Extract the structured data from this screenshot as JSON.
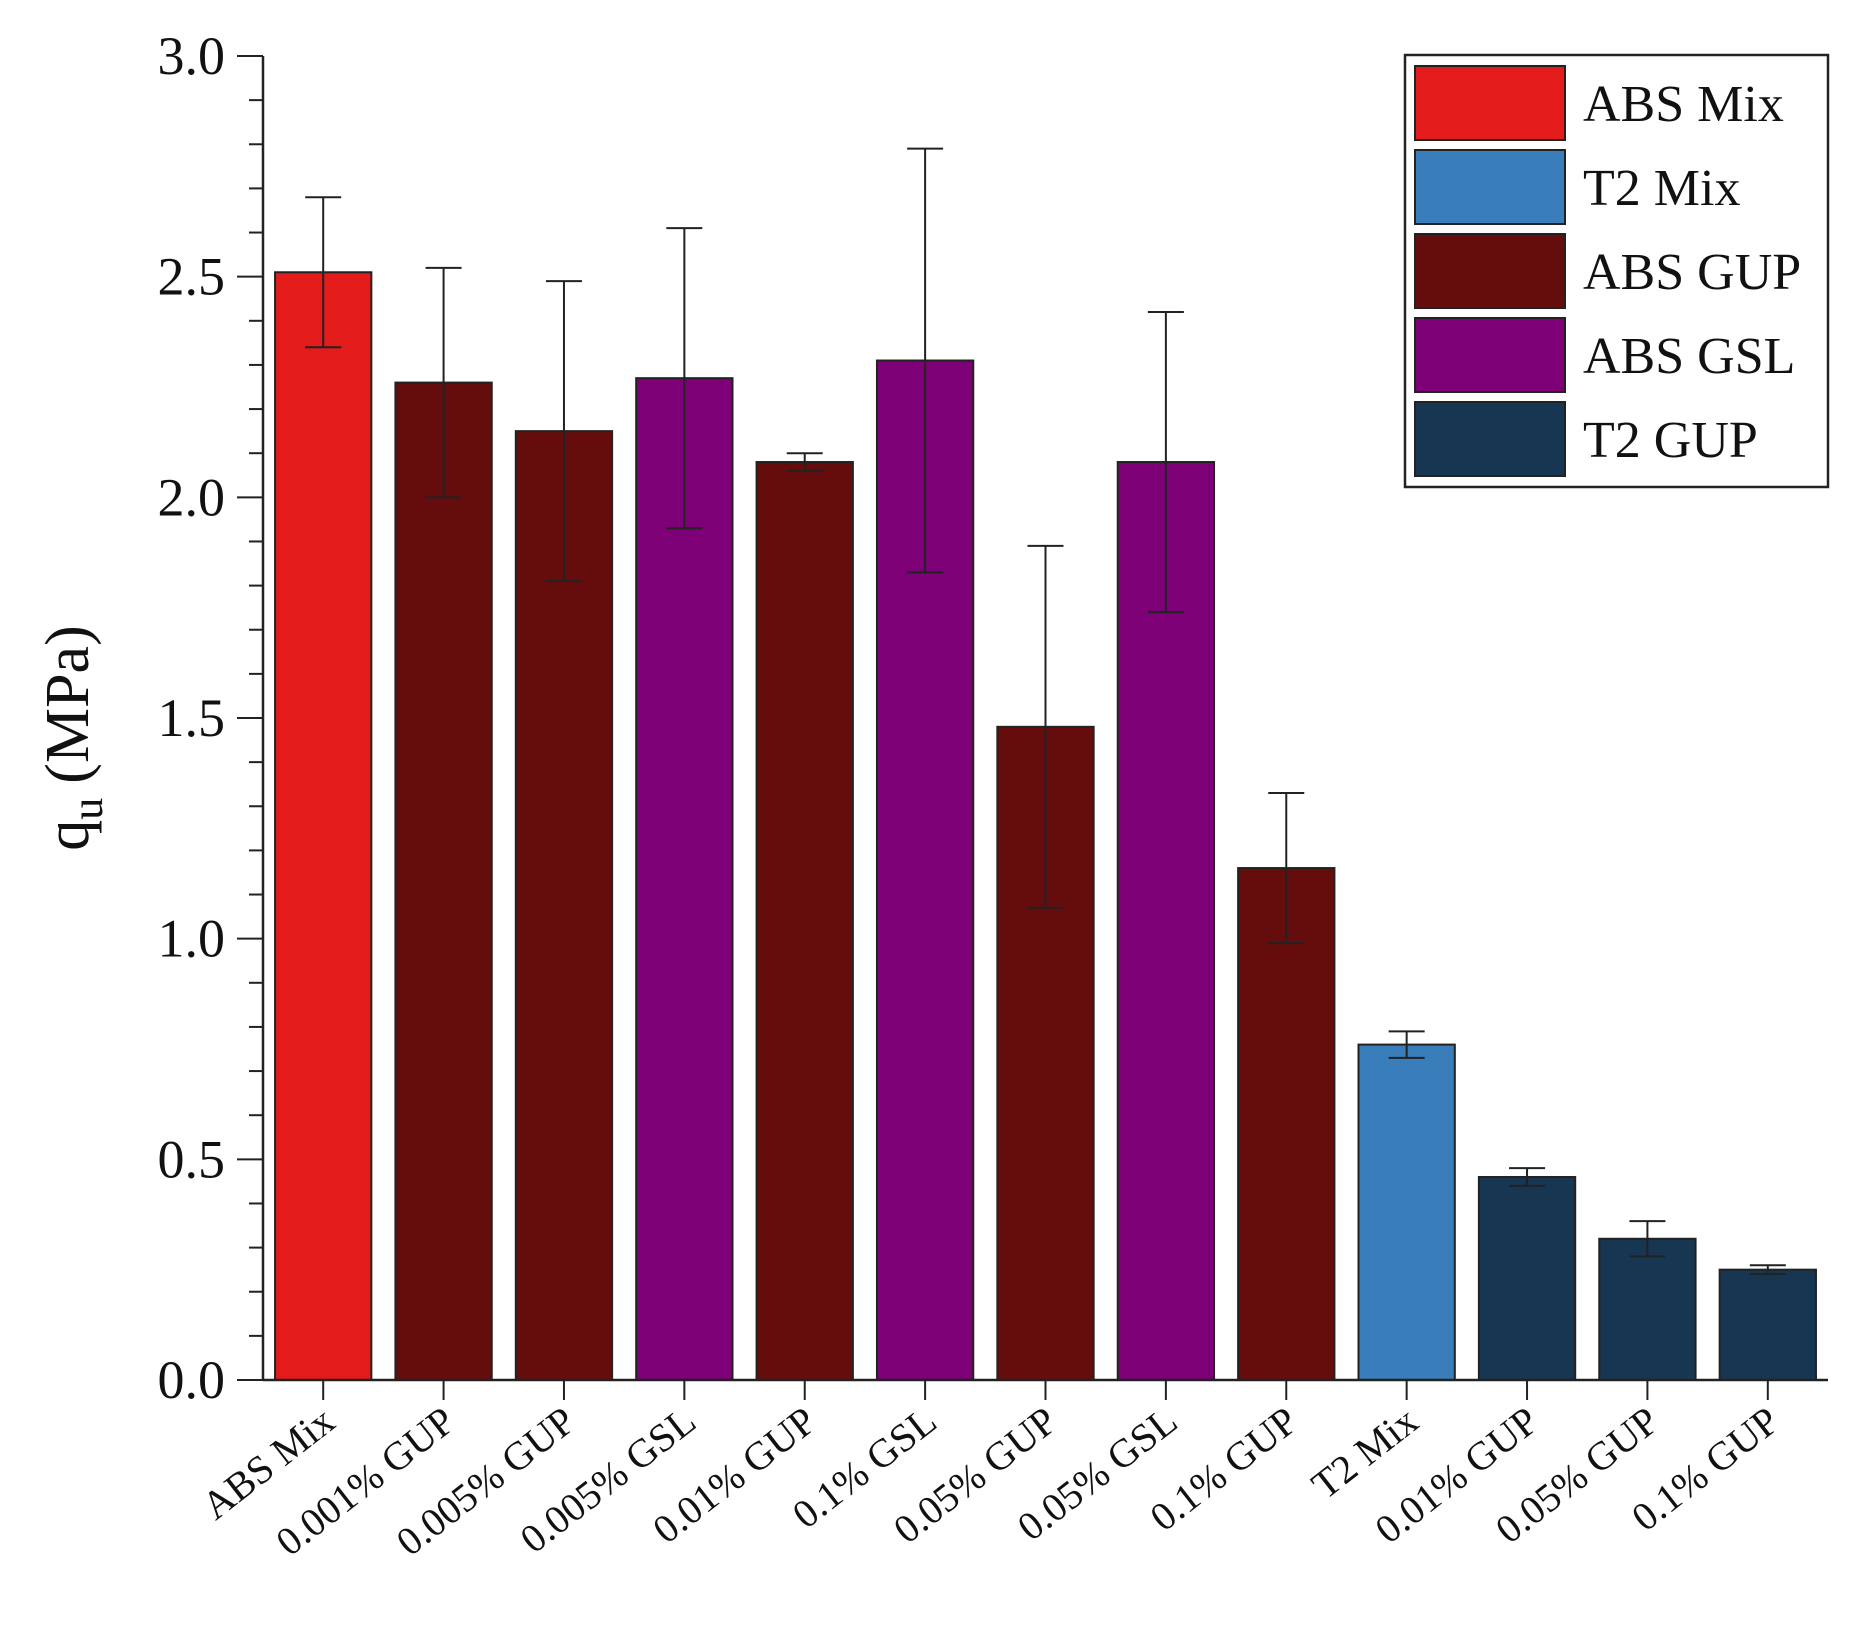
{
  "chart_data": {
    "type": "bar",
    "title": "",
    "xlabel": "",
    "ylabel": "q",
    "ylabel_subscript": "u",
    "ylabel_unit": "(MPa)",
    "ylim": [
      0,
      3.0
    ],
    "yticks": [
      "0.0",
      "0.5",
      "1.0",
      "1.5",
      "2.0",
      "2.5",
      "3.0"
    ],
    "ytick_values": [
      0,
      0.5,
      1.0,
      1.5,
      2.0,
      2.5,
      3.0
    ],
    "categories": [
      "ABS Mix",
      "0.001% GUP",
      "0.005% GUP",
      "0.005% GSL",
      "0.01% GUP",
      "0.1% GSL",
      "0.05% GUP",
      "0.05% GSL",
      "0.1% GUP",
      "T2 Mix",
      "0.01% GUP",
      "0.05% GUP",
      "0.1% GUP"
    ],
    "values": [
      2.51,
      2.26,
      2.15,
      2.27,
      2.08,
      2.31,
      1.48,
      2.08,
      1.16,
      0.76,
      0.46,
      0.32,
      0.25
    ],
    "errors": [
      0.17,
      0.26,
      0.34,
      0.34,
      0.02,
      0.48,
      0.41,
      0.34,
      0.17,
      0.03,
      0.02,
      0.04,
      0.01
    ],
    "groups": [
      "ABS Mix",
      "ABS GUP",
      "ABS GUP",
      "ABS GSL",
      "ABS GUP",
      "ABS GSL",
      "ABS GUP",
      "ABS GSL",
      "ABS GUP",
      "T2 Mix",
      "T2 GUP",
      "T2 GUP",
      "T2 GUP"
    ],
    "legend": [
      {
        "label": "ABS Mix",
        "color": "#e31b1b"
      },
      {
        "label": "T2 Mix",
        "color": "#3a7dbb"
      },
      {
        "label": "ABS GUP",
        "color": "#650d0d"
      },
      {
        "label": "ABS GSL",
        "color": "#7d0077"
      },
      {
        "label": "T2 GUP",
        "color": "#173652"
      }
    ],
    "legend_position": "top-right"
  }
}
